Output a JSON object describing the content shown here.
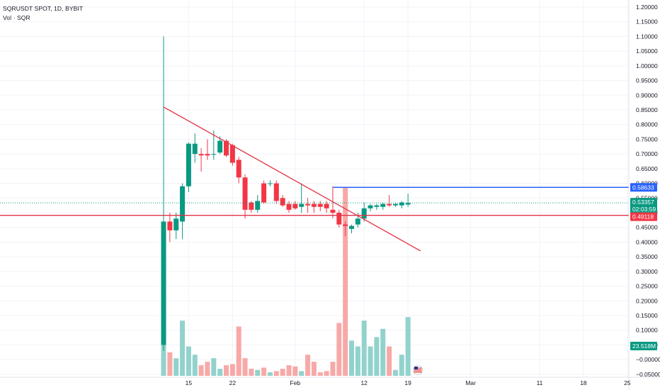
{
  "header": {
    "title": "SQRUSDT SPOT, 1D, BYBIT",
    "volume_label": "Vol · SQR"
  },
  "colors": {
    "up": "#089981",
    "down": "#f23645",
    "vol_up": "#92d2cc",
    "vol_down": "#f7a9a7",
    "trend": "#e5404f",
    "support": "#e0324a",
    "resistance": "#2962ff",
    "grid": "#f0f3fa",
    "axis_text": "#131722"
  },
  "chart_data": {
    "type": "candlestick",
    "symbol": "SQRUSDT",
    "interval": "1D",
    "exchange": "BYBIT",
    "y_ticks": [
      1.2,
      1.15,
      1.1,
      1.05,
      1.0,
      0.95,
      0.9,
      0.85,
      0.8,
      0.75,
      0.7,
      0.65,
      0.6,
      0.55,
      0.5,
      0.45,
      0.4,
      0.35,
      0.3,
      0.25,
      0.2,
      0.15,
      0.1,
      0.05,
      -0.0,
      -0.05
    ],
    "y_tick_labels": [
      "1.20000",
      "1.15000",
      "1.10000",
      "1.05000",
      "1.00000",
      "0.95000",
      "0.90000",
      "0.85000",
      "0.80000",
      "0.75000",
      "0.70000",
      "0.65000",
      "0.60000",
      "0.55000",
      "0.50000",
      "0.45000",
      "0.40000",
      "0.35000",
      "0.30000",
      "0.25000",
      "0.20000",
      "0.15000",
      "0.10000",
      "0.05000",
      "−0.00000",
      "−0.05000"
    ],
    "ylim": [
      -0.05,
      1.2
    ],
    "x_ticks": [
      {
        "day": 15,
        "label": "15"
      },
      {
        "day": 22,
        "label": "22"
      },
      {
        "day": 32,
        "label": "Feb"
      },
      {
        "day": 43,
        "label": "12"
      },
      {
        "day": 50,
        "label": "19"
      },
      {
        "day": 60,
        "label": "Mar"
      },
      {
        "day": 71,
        "label": "11"
      },
      {
        "day": 78,
        "label": "18"
      },
      {
        "day": 85,
        "label": "25"
      }
    ],
    "candles": [
      {
        "day": 11,
        "o": 0.05,
        "h": 1.1,
        "l": 0.03,
        "c": 0.47,
        "v": 0.05
      },
      {
        "day": 12,
        "o": 0.47,
        "h": 0.5,
        "l": 0.4,
        "c": 0.44,
        "v": 0.02
      },
      {
        "day": 13,
        "o": 0.44,
        "h": 0.5,
        "l": 0.41,
        "c": 0.48,
        "v": 0.015
      },
      {
        "day": 14,
        "o": 0.47,
        "h": 0.6,
        "l": 0.41,
        "c": 0.59,
        "v": 0.047
      },
      {
        "day": 15,
        "o": 0.59,
        "h": 0.74,
        "l": 0.57,
        "c": 0.735,
        "v": 0.025
      },
      {
        "day": 16,
        "o": 0.7,
        "h": 0.77,
        "l": 0.67,
        "c": 0.735,
        "v": 0.018
      },
      {
        "day": 17,
        "o": 0.7,
        "h": 0.72,
        "l": 0.64,
        "c": 0.695,
        "v": 0.009
      },
      {
        "day": 18,
        "o": 0.7,
        "h": 0.75,
        "l": 0.68,
        "c": 0.695,
        "v": 0.012
      },
      {
        "day": 19,
        "o": 0.7,
        "h": 0.78,
        "l": 0.68,
        "c": 0.7,
        "v": 0.015
      },
      {
        "day": 20,
        "o": 0.705,
        "h": 0.76,
        "l": 0.7,
        "c": 0.745,
        "v": 0.006
      },
      {
        "day": 21,
        "o": 0.745,
        "h": 0.75,
        "l": 0.69,
        "c": 0.695,
        "v": 0.009
      },
      {
        "day": 22,
        "o": 0.73,
        "h": 0.735,
        "l": 0.66,
        "c": 0.67,
        "v": 0.01
      },
      {
        "day": 23,
        "o": 0.68,
        "h": 0.69,
        "l": 0.6,
        "c": 0.62,
        "v": 0.042
      },
      {
        "day": 24,
        "o": 0.62,
        "h": 0.63,
        "l": 0.48,
        "c": 0.51,
        "v": 0.015
      },
      {
        "day": 25,
        "o": 0.535,
        "h": 0.54,
        "l": 0.5,
        "c": 0.51,
        "v": 0.006
      },
      {
        "day": 26,
        "o": 0.51,
        "h": 0.56,
        "l": 0.5,
        "c": 0.54,
        "v": 0.005
      },
      {
        "day": 27,
        "o": 0.6,
        "h": 0.61,
        "l": 0.53,
        "c": 0.535,
        "v": 0.007
      },
      {
        "day": 28,
        "o": 0.6,
        "h": 0.61,
        "l": 0.59,
        "c": 0.6,
        "v": 0.003
      },
      {
        "day": 29,
        "o": 0.6,
        "h": 0.61,
        "l": 0.53,
        "c": 0.54,
        "v": 0.004
      },
      {
        "day": 30,
        "o": 0.55,
        "h": 0.56,
        "l": 0.52,
        "c": 0.525,
        "v": 0.006
      },
      {
        "day": 31,
        "o": 0.53,
        "h": 0.54,
        "l": 0.5,
        "c": 0.51,
        "v": 0.009
      },
      {
        "day": 32,
        "o": 0.53,
        "h": 0.54,
        "l": 0.51,
        "c": 0.515,
        "v": 0.008
      },
      {
        "day": 33,
        "o": 0.52,
        "h": 0.6,
        "l": 0.5,
        "c": 0.53,
        "v": 0.004
      },
      {
        "day": 34,
        "o": 0.53,
        "h": 0.55,
        "l": 0.5,
        "c": 0.525,
        "v": 0.018
      },
      {
        "day": 35,
        "o": 0.53,
        "h": 0.54,
        "l": 0.5,
        "c": 0.52,
        "v": 0.012
      },
      {
        "day": 36,
        "o": 0.53,
        "h": 0.54,
        "l": 0.505,
        "c": 0.52,
        "v": 0.003
      },
      {
        "day": 37,
        "o": 0.53,
        "h": 0.54,
        "l": 0.5,
        "c": 0.515,
        "v": 0.004
      },
      {
        "day": 38,
        "o": 0.51,
        "h": 0.59,
        "l": 0.48,
        "c": 0.5,
        "v": 0.012
      },
      {
        "day": 39,
        "o": 0.5,
        "h": 0.51,
        "l": 0.45,
        "c": 0.46,
        "v": 0.045
      },
      {
        "day": 40,
        "o": 0.46,
        "h": 0.47,
        "l": 0.42,
        "c": 0.455,
        "v": 0.16
      },
      {
        "day": 41,
        "o": 0.445,
        "h": 0.46,
        "l": 0.43,
        "c": 0.455,
        "v": 0.03
      },
      {
        "day": 42,
        "o": 0.46,
        "h": 0.5,
        "l": 0.45,
        "c": 0.48,
        "v": 0.025
      },
      {
        "day": 43,
        "o": 0.48,
        "h": 0.535,
        "l": 0.47,
        "c": 0.515,
        "v": 0.047
      },
      {
        "day": 44,
        "o": 0.515,
        "h": 0.53,
        "l": 0.505,
        "c": 0.525,
        "v": 0.025
      },
      {
        "day": 45,
        "o": 0.52,
        "h": 0.53,
        "l": 0.51,
        "c": 0.525,
        "v": 0.033
      },
      {
        "day": 46,
        "o": 0.52,
        "h": 0.535,
        "l": 0.51,
        "c": 0.53,
        "v": 0.04
      },
      {
        "day": 47,
        "o": 0.53,
        "h": 0.56,
        "l": 0.52,
        "c": 0.525,
        "v": 0.025
      },
      {
        "day": 48,
        "o": 0.525,
        "h": 0.535,
        "l": 0.52,
        "c": 0.53,
        "v": 0.005
      },
      {
        "day": 49,
        "o": 0.525,
        "h": 0.54,
        "l": 0.515,
        "c": 0.535,
        "v": 0.018
      },
      {
        "day": 50,
        "o": 0.528,
        "h": 0.565,
        "l": 0.52,
        "c": 0.5336,
        "v": 0.05
      }
    ],
    "drawings": {
      "trendline": {
        "from": {
          "day": 11,
          "price": 0.86
        },
        "to": {
          "day": 52,
          "price": 0.37
        }
      },
      "resistance": {
        "price": 0.5863,
        "from_day": 38,
        "label": "0.58633"
      },
      "support": {
        "price": 0.4912,
        "label": "0.49118"
      }
    },
    "last_price": {
      "label": "0.53357",
      "countdown": "02:03:59",
      "price": 0.53357
    },
    "volume_tag": {
      "label": "23.518M"
    }
  }
}
